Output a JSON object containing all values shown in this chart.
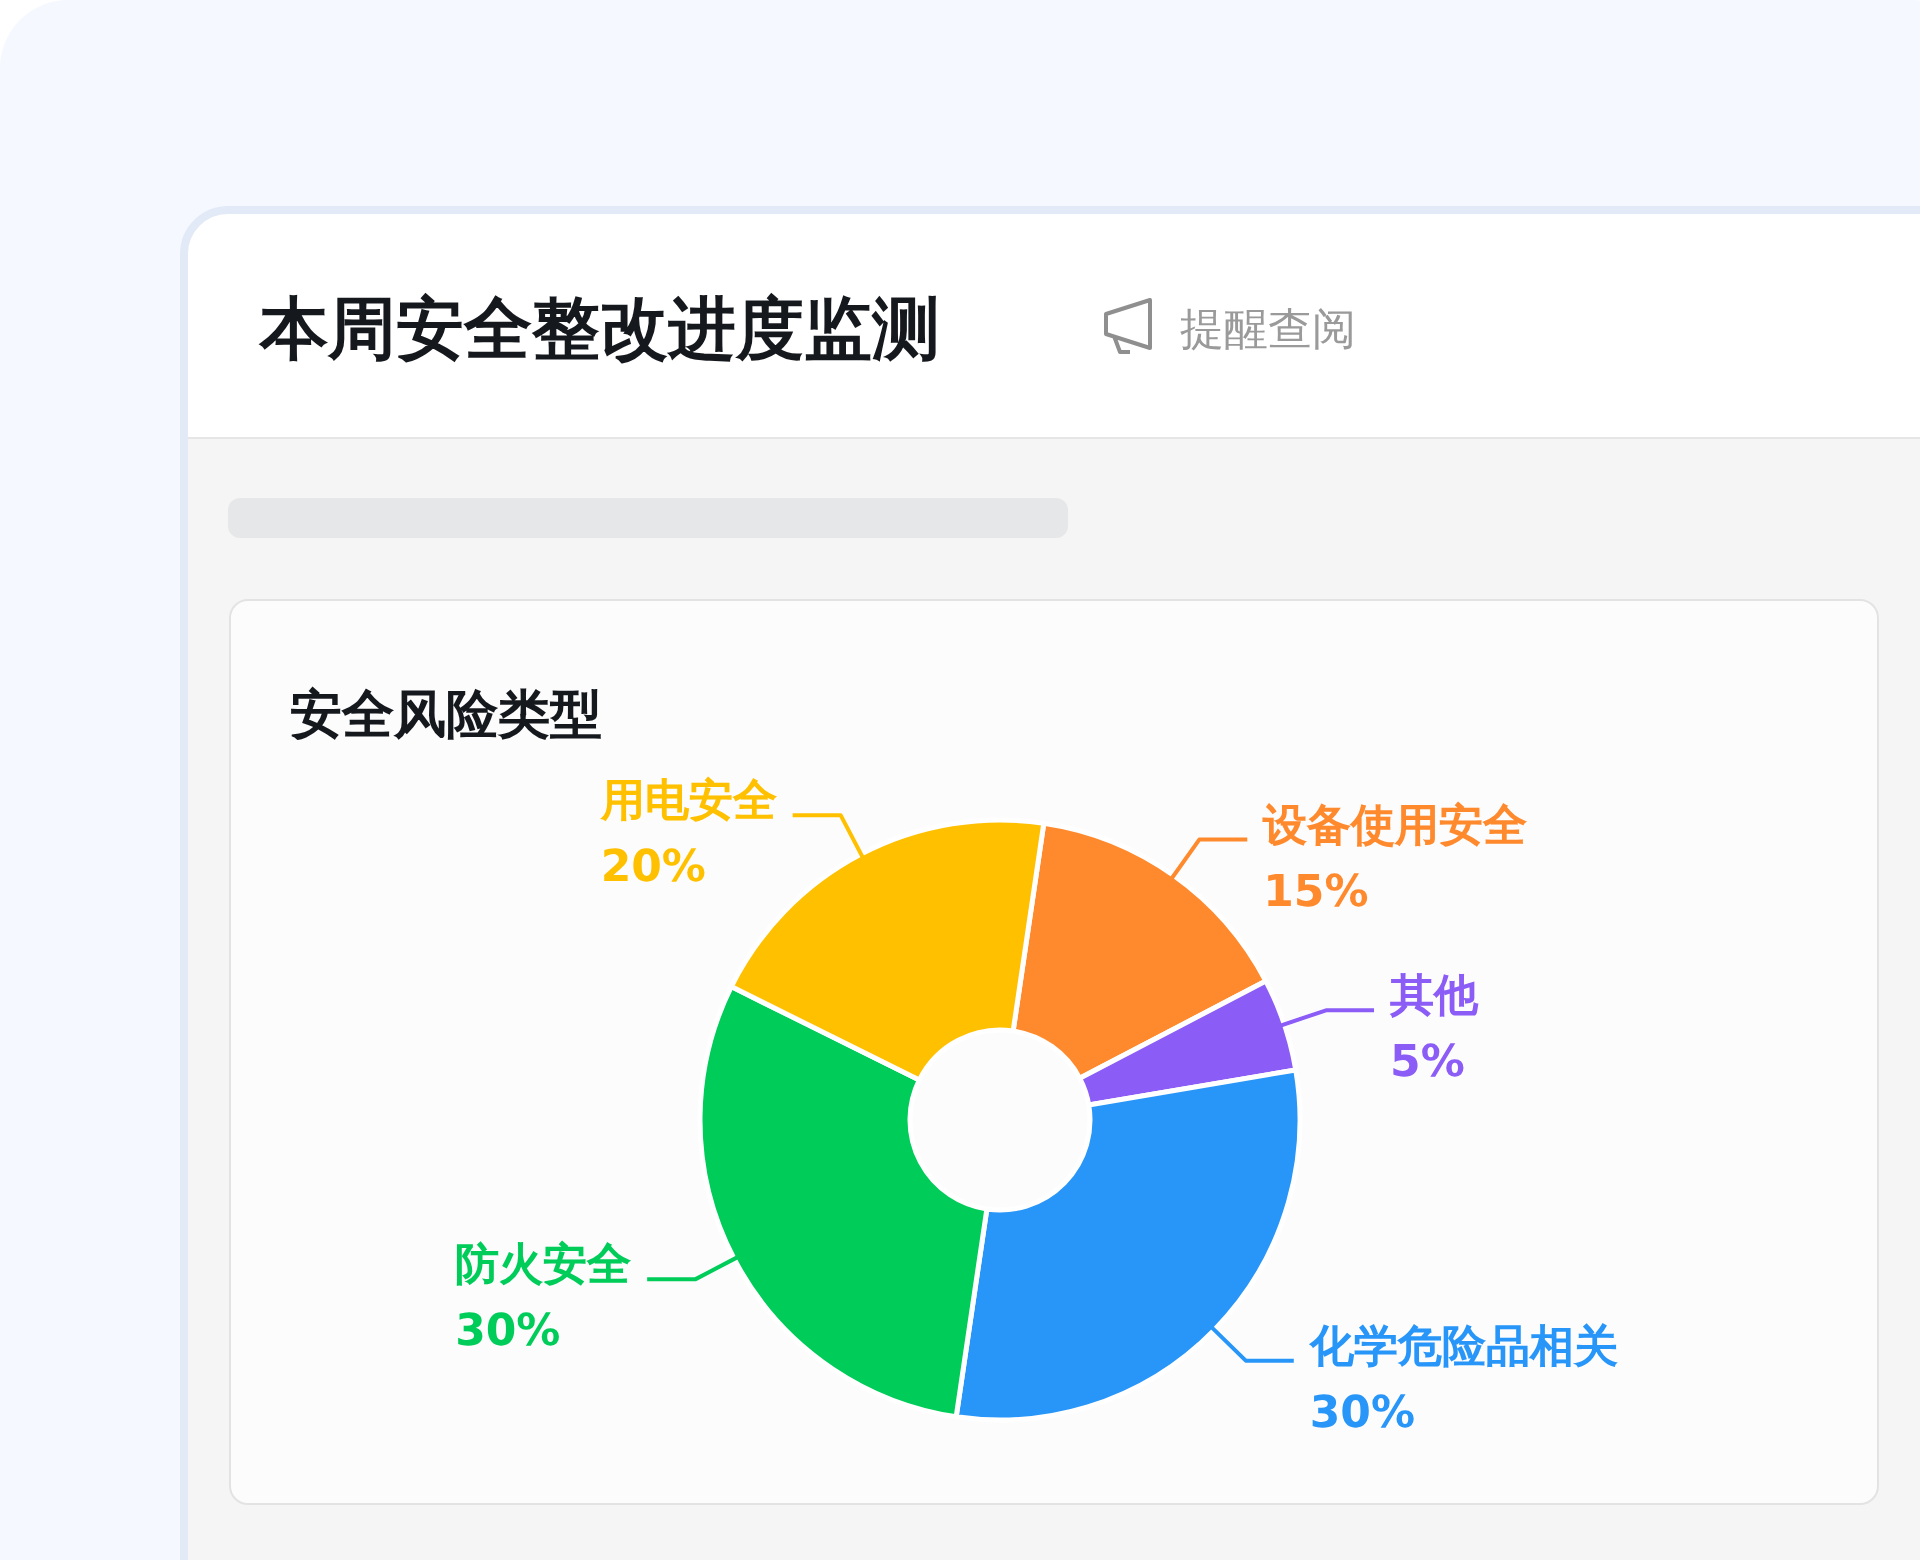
{
  "chart_data": {
    "type": "donut",
    "title": "本周安全整改进度监测",
    "subtitle": "安全风险类型",
    "annotations": [
      "提醒查阅"
    ],
    "categories": [
      "设备使用安全",
      "其他",
      "化学危险品相关",
      "防火安全",
      "用电安全"
    ],
    "values": [
      15,
      5,
      30,
      30,
      20
    ],
    "colors": [
      "#ff8a2e",
      "#8b5cf6",
      "#2896f8",
      "#00cc5a",
      "#ffc000"
    ],
    "value_labels": [
      "15%",
      "5%",
      "30%",
      "30%",
      "20%"
    ]
  }
}
